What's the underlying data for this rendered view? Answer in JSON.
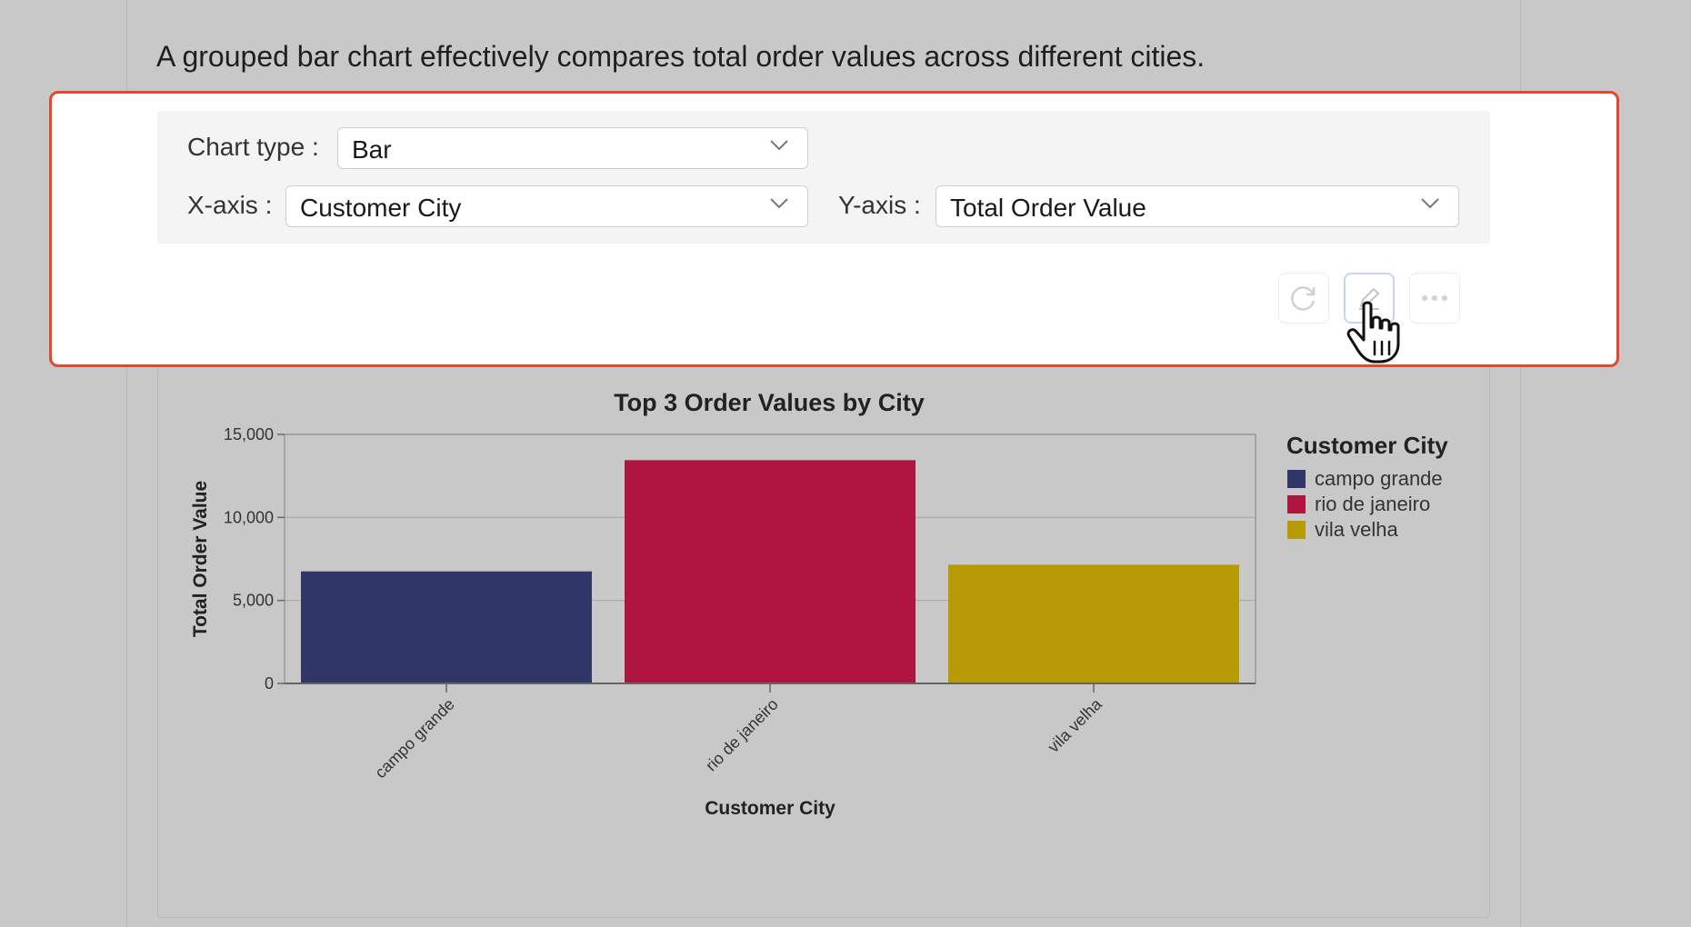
{
  "intro_text": "A grouped bar chart effectively compares total order values across different cities.",
  "config": {
    "chart_type_label": "Chart type",
    "chart_type_value": "Bar",
    "x_axis_label": "X-axis",
    "x_axis_value": "Customer City",
    "y_axis_label": "Y-axis",
    "y_axis_value": "Total Order Value"
  },
  "toolbar": {
    "refresh_icon": "refresh-icon",
    "edit_icon": "pencil-icon",
    "more_icon": "more-icon"
  },
  "colors": {
    "highlight": "#e8452c",
    "series": [
      "#303667",
      "#b01441",
      "#b89a05"
    ]
  },
  "chart_data": {
    "type": "bar",
    "title": "Top 3 Order Values by City",
    "xlabel": "Customer City",
    "ylabel": "Total Order Value",
    "categories": [
      "campo grande",
      "rio de janeiro",
      "vila velha"
    ],
    "values": [
      6750,
      13450,
      7150
    ],
    "ylim": [
      0,
      15000
    ],
    "yticks": [
      0,
      5000,
      10000,
      15000
    ],
    "ytick_labels": [
      "0",
      "5,000",
      "10,000",
      "15,000"
    ],
    "legend": {
      "title": "Customer City",
      "entries": [
        "campo grande",
        "rio de janeiro",
        "vila velha"
      ],
      "placement": "right"
    },
    "grid": true
  }
}
